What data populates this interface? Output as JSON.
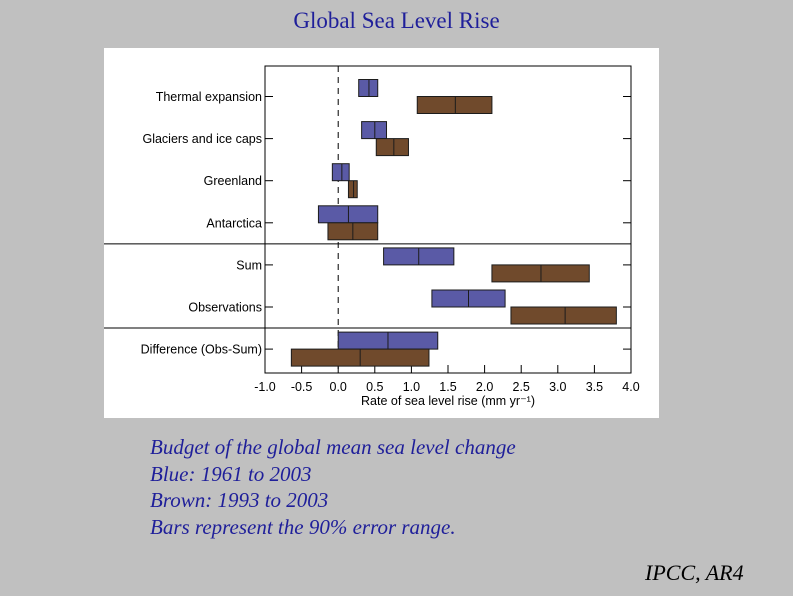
{
  "slide": {
    "title": "Global Sea Level Rise",
    "caption": [
      "Budget of the global mean sea level change",
      "Blue: 1961 to 2003",
      "Brown: 1993 to 2003",
      "Bars represent the 90% error range."
    ],
    "source": "IPCC, AR4"
  },
  "chart_data": {
    "type": "bar",
    "orientation": "horizontal",
    "style": "error-range boxes with central tick",
    "title": "",
    "xlabel": "Rate of sea level rise (mm yr⁻¹)",
    "ylabel": "",
    "xlim": [
      -1.0,
      4.0
    ],
    "xticks": [
      "-1.0",
      "-0.5",
      "0.0",
      "0.5",
      "1.0",
      "1.5",
      "2.0",
      "2.5",
      "3.0",
      "3.5",
      "4.0"
    ],
    "zero_line": "dashed",
    "categories": [
      "Thermal expansion",
      "Glaciers and ice caps",
      "Greenland",
      "Antarctica",
      "Sum",
      "Observations",
      "Difference (Obs-Sum)"
    ],
    "group_separators_after": [
      "Antarctica",
      "Observations"
    ],
    "series": [
      {
        "period": "1961 to 2003",
        "color": "#5a5aa6",
        "values": [
          {
            "category": "Thermal expansion",
            "low": 0.28,
            "central": 0.42,
            "high": 0.54
          },
          {
            "category": "Glaciers and ice caps",
            "low": 0.32,
            "central": 0.5,
            "high": 0.66
          },
          {
            "category": "Greenland",
            "low": -0.08,
            "central": 0.05,
            "high": 0.15
          },
          {
            "category": "Antarctica",
            "low": -0.27,
            "central": 0.14,
            "high": 0.54
          },
          {
            "category": "Sum",
            "low": 0.62,
            "central": 1.1,
            "high": 1.58
          },
          {
            "category": "Observations",
            "low": 1.28,
            "central": 1.78,
            "high": 2.28
          },
          {
            "category": "Difference (Obs-Sum)",
            "low": 0.0,
            "central": 0.68,
            "high": 1.36
          }
        ]
      },
      {
        "period": "1993 to 2003",
        "color": "#704a2c",
        "values": [
          {
            "category": "Thermal expansion",
            "low": 1.08,
            "central": 1.6,
            "high": 2.1
          },
          {
            "category": "Glaciers and ice caps",
            "low": 0.52,
            "central": 0.76,
            "high": 0.96
          },
          {
            "category": "Greenland",
            "low": 0.14,
            "central": 0.21,
            "high": 0.26
          },
          {
            "category": "Antarctica",
            "low": -0.14,
            "central": 0.2,
            "high": 0.54
          },
          {
            "category": "Sum",
            "low": 2.1,
            "central": 2.77,
            "high": 3.43
          },
          {
            "category": "Observations",
            "low": 2.36,
            "central": 3.1,
            "high": 3.8
          },
          {
            "category": "Difference (Obs-Sum)",
            "low": -0.64,
            "central": 0.3,
            "high": 1.24
          }
        ]
      }
    ]
  }
}
